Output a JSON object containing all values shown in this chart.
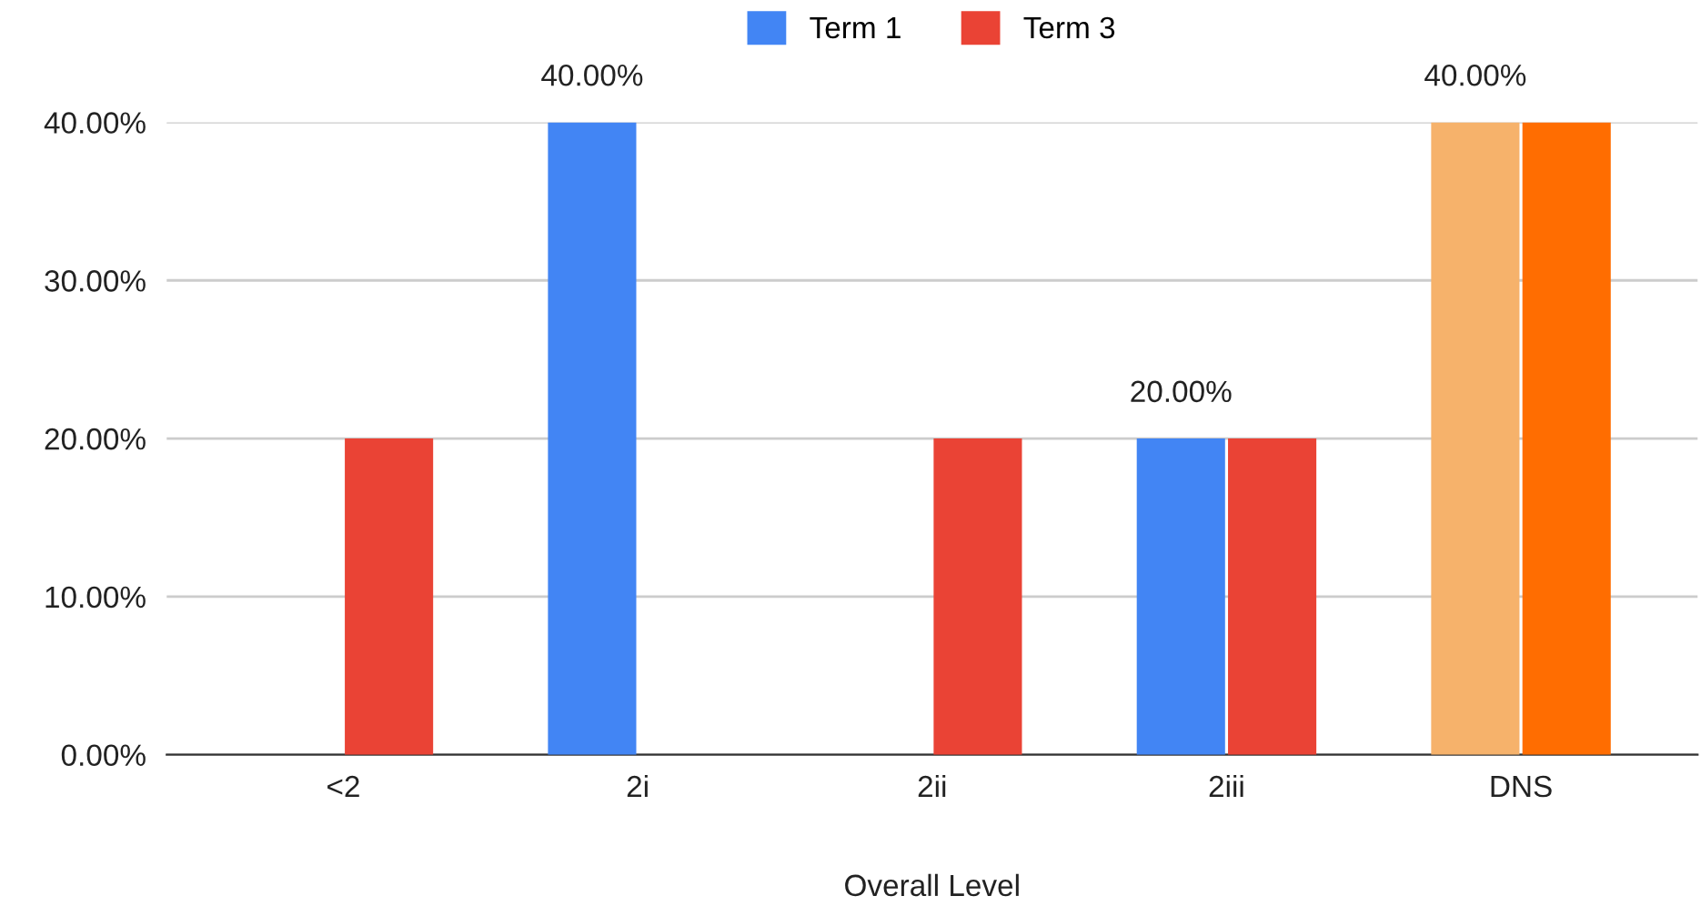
{
  "chart_data": {
    "type": "bar",
    "xlabel": "Overall Level",
    "categories": [
      "<2",
      "2i",
      "2ii",
      "2iii",
      "DNS"
    ],
    "series": [
      {
        "name": "Term 1",
        "color": "#4285f4",
        "colors": [
          "#4285f4",
          "#4285f4",
          "#4285f4",
          "#4285f4",
          "#f6b26b"
        ],
        "values": [
          null,
          40,
          null,
          20,
          40
        ],
        "value_labels": [
          null,
          "40.00%",
          null,
          "20.00%",
          "40.00%"
        ]
      },
      {
        "name": "Term 3",
        "color": "#ea4335",
        "colors": [
          "#ea4335",
          "#ea4335",
          "#ea4335",
          "#ea4335",
          "#ff6d01"
        ],
        "values": [
          20,
          null,
          20,
          20,
          40
        ]
      }
    ],
    "ylim": [
      0,
      40
    ],
    "yticks": [
      {
        "value": 0,
        "label": "0.00%"
      },
      {
        "value": 10,
        "label": "10.00%"
      },
      {
        "value": 20,
        "label": "20.00%"
      },
      {
        "value": 30,
        "label": "30.00%"
      },
      {
        "value": 40,
        "label": "40.00%"
      }
    ],
    "grid": "y",
    "legend": "top"
  }
}
